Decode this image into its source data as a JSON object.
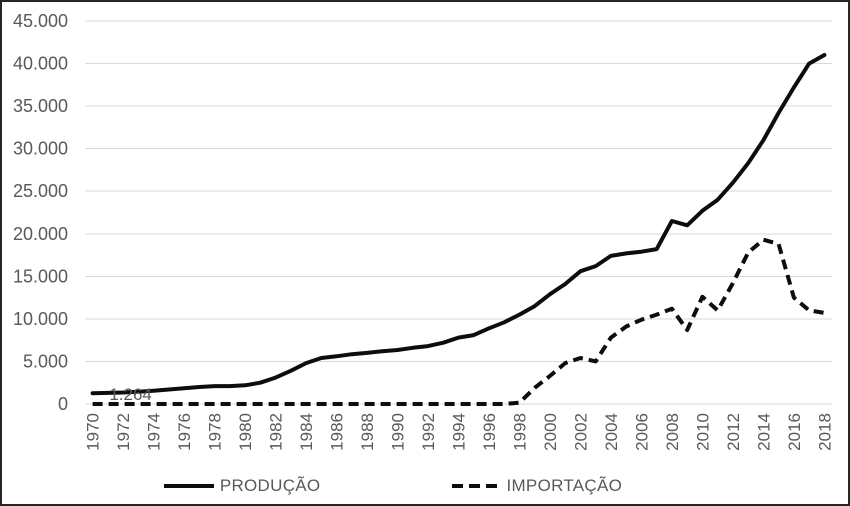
{
  "chart_data": {
    "type": "line",
    "title": "",
    "xlabel": "",
    "ylabel": "",
    "x_start": 1970,
    "x_end": 2018,
    "x_tick_labels": [
      "1970",
      "1972",
      "1974",
      "1976",
      "1978",
      "1980",
      "1982",
      "1984",
      "1986",
      "1988",
      "1990",
      "1992",
      "1994",
      "1996",
      "1998",
      "2000",
      "2002",
      "2004",
      "2006",
      "2008",
      "2010",
      "2012",
      "2014",
      "2016",
      "2018"
    ],
    "y_ticks": [
      {
        "value": 45000,
        "label": "45.000"
      },
      {
        "value": 40000,
        "label": "40.000"
      },
      {
        "value": 35000,
        "label": "35.000"
      },
      {
        "value": 30000,
        "label": "30.000"
      },
      {
        "value": 25000,
        "label": "25.000"
      },
      {
        "value": 20000,
        "label": "20.000"
      },
      {
        "value": 15000,
        "label": "15.000"
      },
      {
        "value": 10000,
        "label": "10.000"
      },
      {
        "value": 5000,
        "label": "5.000"
      },
      {
        "value": 0,
        "label": "0"
      }
    ],
    "ylim": [
      0,
      45000
    ],
    "grid": "horizontal",
    "legend_position": "bottom",
    "series": [
      {
        "name": "PRODUÇÃO",
        "style": "solid",
        "color": "#0d0d0d",
        "values": [
          1264,
          1300,
          1350,
          1450,
          1550,
          1700,
          1850,
          2000,
          2100,
          2100,
          2200,
          2500,
          3100,
          3900,
          4800,
          5400,
          5600,
          5850,
          6000,
          6200,
          6350,
          6600,
          6800,
          7200,
          7800,
          8100,
          8900,
          9600,
          10500,
          11500,
          12900,
          14100,
          15600,
          16200,
          17400,
          17700,
          17900,
          18200,
          21500,
          21000,
          22700,
          24000,
          26000,
          28300,
          31000,
          34200,
          37200,
          40000,
          41000
        ]
      },
      {
        "name": "IMPORTAÇÃO",
        "style": "dashed",
        "color": "#0d0d0d",
        "values": [
          0,
          0,
          0,
          0,
          0,
          0,
          0,
          0,
          0,
          0,
          0,
          0,
          0,
          0,
          0,
          0,
          0,
          0,
          0,
          0,
          0,
          0,
          0,
          0,
          0,
          0,
          0,
          0,
          150,
          1900,
          3300,
          4800,
          5400,
          5000,
          7800,
          9100,
          9900,
          10500,
          11200,
          8700,
          12600,
          11000,
          14200,
          17800,
          19300,
          18800,
          12500,
          11000,
          10700
        ]
      }
    ],
    "annotations": [
      {
        "text": "1.264",
        "series": "PRODUÇÃO",
        "year": 1970,
        "value": 1264
      }
    ],
    "colors": {
      "gridline": "#d9d9d9",
      "axis_text": "#595959",
      "annotation_text": "#595959",
      "line": "#0d0d0d"
    }
  }
}
